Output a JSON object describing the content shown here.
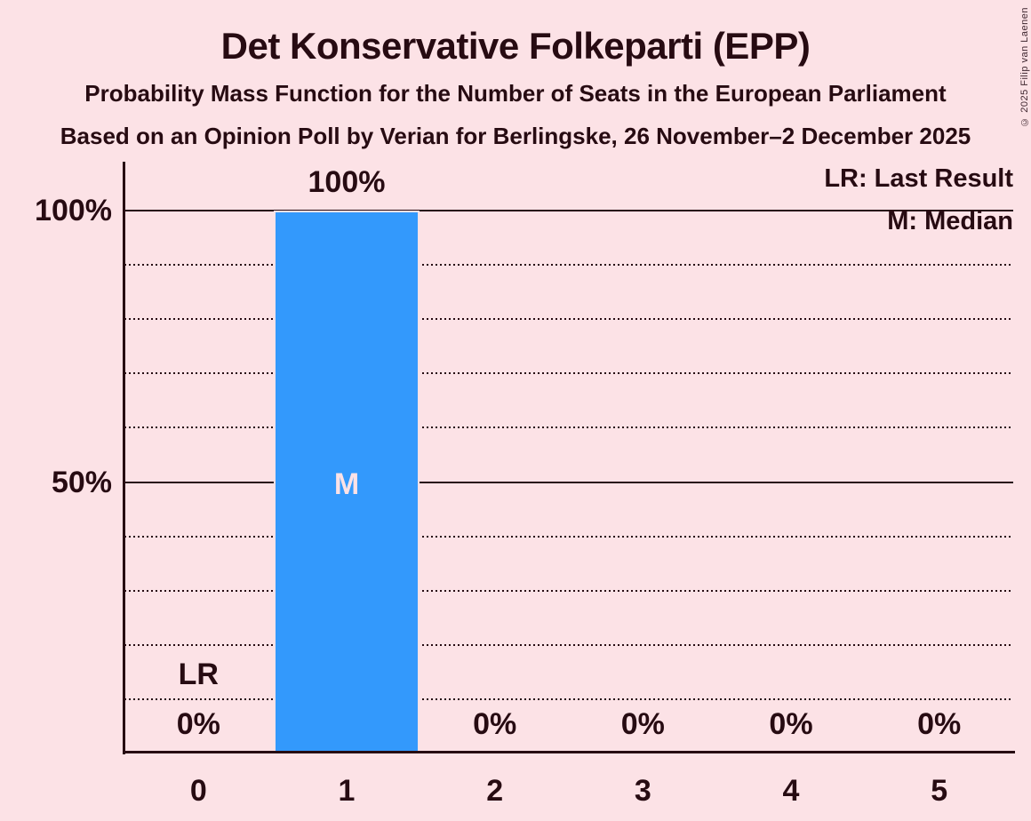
{
  "page": {
    "background_color": "#fce2e6",
    "text_color": "#270b12",
    "copyright": "© 2025 Filip van Laenen"
  },
  "header": {
    "title": "Det Konservative Folkeparti (EPP)",
    "subtitle1": "Probability Mass Function for the Number of Seats in the European Parliament",
    "subtitle2": "Based on an Opinion Poll by Verian for Berlingske, 26 November–2 December 2025"
  },
  "legend": {
    "lr_label": "LR: Last Result",
    "m_label": "M: Median"
  },
  "chart_data": {
    "type": "bar",
    "title": "Det Konservative Folkeparti (EPP)",
    "xlabel": "",
    "ylabel": "",
    "categories": [
      "0",
      "1",
      "2",
      "3",
      "4",
      "5"
    ],
    "values": [
      0,
      100,
      0,
      0,
      0,
      0
    ],
    "value_labels": [
      "0%",
      "100%",
      "0%",
      "0%",
      "0%",
      "0%"
    ],
    "median_category_index": 1,
    "median_marker": "M",
    "last_result_category_index": 0,
    "last_result_marker": "LR",
    "ylim": [
      0,
      100
    ],
    "ytick_values": [
      100,
      50
    ],
    "ytick_labels": [
      "100%",
      "50%"
    ],
    "gridlines": {
      "solid": [
        100,
        50
      ],
      "dotted": [
        90,
        80,
        70,
        60,
        40,
        30,
        20,
        10
      ]
    },
    "legend_position": "top-right",
    "grid": true,
    "bar_color": "#3399fc",
    "inside_bar_text_color": "#fce2e6"
  }
}
